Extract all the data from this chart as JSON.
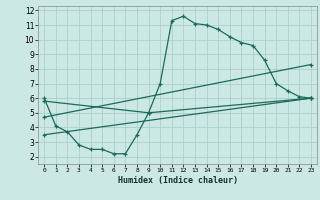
{
  "xlabel": "Humidex (Indice chaleur)",
  "background_color": "#cce8e4",
  "grid_color": "#aacfcc",
  "line_color": "#1a6b5a",
  "xlim": [
    -0.5,
    23.5
  ],
  "ylim": [
    1.5,
    12.3
  ],
  "xticks": [
    0,
    1,
    2,
    3,
    4,
    5,
    6,
    7,
    8,
    9,
    10,
    11,
    12,
    13,
    14,
    15,
    16,
    17,
    18,
    19,
    20,
    21,
    22,
    23
  ],
  "yticks": [
    2,
    3,
    4,
    5,
    6,
    7,
    8,
    9,
    10,
    11,
    12
  ],
  "series": [
    {
      "x": [
        0,
        1,
        2,
        3,
        4,
        5,
        6,
        7,
        8,
        9,
        10,
        11,
        12,
        13,
        14,
        15,
        16,
        17,
        18,
        19,
        20,
        21,
        22,
        23
      ],
      "y": [
        6.0,
        4.1,
        3.7,
        2.8,
        2.5,
        2.5,
        2.2,
        2.2,
        3.5,
        5.0,
        7.0,
        11.3,
        11.6,
        11.1,
        11.0,
        10.7,
        10.2,
        9.8,
        9.6,
        8.6,
        7.0,
        6.5,
        6.1,
        6.0
      ]
    },
    {
      "x": [
        0,
        23
      ],
      "y": [
        3.5,
        6.0
      ]
    },
    {
      "x": [
        0,
        23
      ],
      "y": [
        4.7,
        8.3
      ]
    },
    {
      "x": [
        0,
        9,
        23
      ],
      "y": [
        5.8,
        5.0,
        6.0
      ]
    }
  ]
}
